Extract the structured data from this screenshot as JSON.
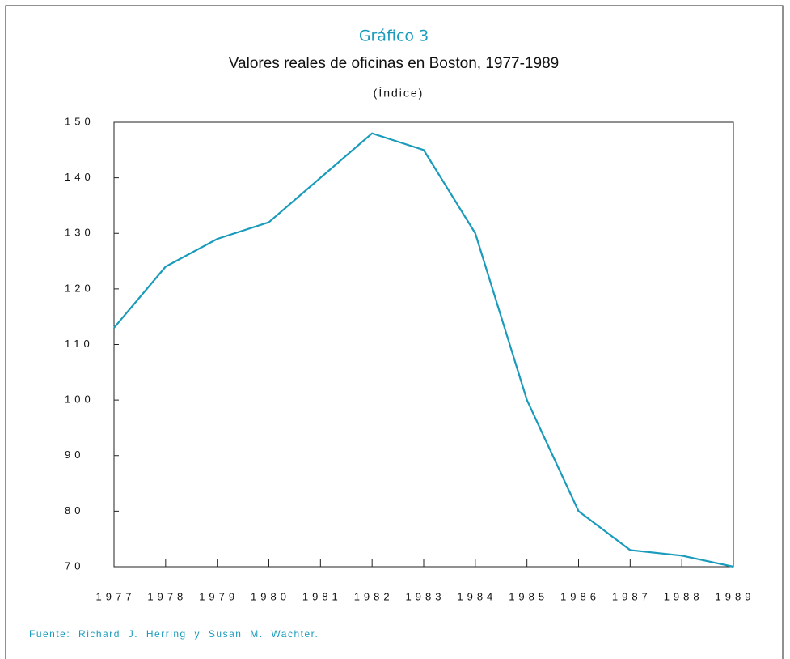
{
  "chart_data": {
    "type": "line",
    "label": "Gráfico 3",
    "title": "Valores reales de oficinas en Boston, 1977-1989",
    "subtitle": "(Índice)",
    "source": "Fuente: Richard J. Herring y Susan M. Wachter.",
    "x": [
      1977,
      1978,
      1979,
      1980,
      1981,
      1982,
      1983,
      1984,
      1985,
      1986,
      1987,
      1988,
      1989
    ],
    "series": [
      {
        "color": "#1a9bbb",
        "values": [
          113,
          124,
          129,
          132,
          140,
          148,
          145,
          130,
          100,
          80,
          73,
          72,
          70
        ]
      }
    ],
    "xlim": [
      1977,
      1989
    ],
    "xticks": [
      1977,
      1978,
      1979,
      1980,
      1981,
      1982,
      1983,
      1984,
      1985,
      1986,
      1987,
      1988,
      1989
    ],
    "ylim": [
      70,
      150
    ],
    "yticks": [
      70,
      80,
      90,
      100,
      110,
      120,
      130,
      140,
      150
    ]
  }
}
